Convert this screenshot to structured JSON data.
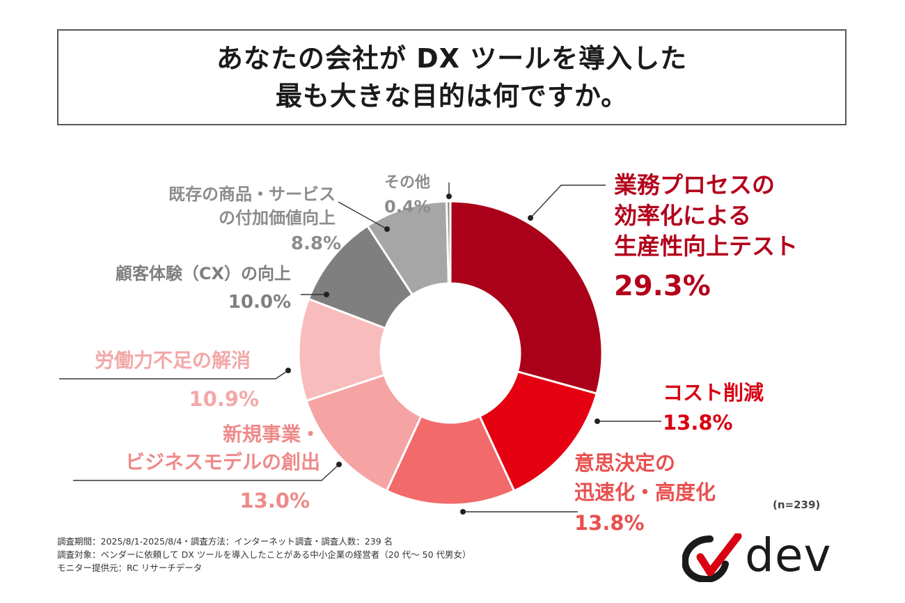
{
  "title": {
    "line1": "あなたの会社が DX ツールを導入した",
    "line2": "最も大きな目的は何ですか。"
  },
  "chart_data": {
    "type": "pie",
    "donut": true,
    "slices": [
      {
        "label_lines": [
          "業務プロセスの",
          "効率化による",
          "生産性向上テスト"
        ],
        "value": 29.3,
        "value_text": "29.3%",
        "color": "#aa0019",
        "label_color": "#b3001b"
      },
      {
        "label_lines": [
          "コスト削減"
        ],
        "value": 13.8,
        "value_text": "13.8%",
        "color": "#e50012",
        "label_color": "#d80012"
      },
      {
        "label_lines": [
          "意思決定の",
          "迅速化・高度化"
        ],
        "value": 13.8,
        "value_text": "13.8%",
        "color": "#f26a6a",
        "label_color": "#e8504f"
      },
      {
        "label_lines": [
          "新規事業・",
          "ビジネスモデルの創出"
        ],
        "value": 13.0,
        "value_text": "13.0%",
        "color": "#f5a3a3",
        "label_color": "#ee8a8a"
      },
      {
        "label_lines": [
          "労働力不足の解消"
        ],
        "value": 10.9,
        "value_text": "10.9%",
        "color": "#f8bcbc",
        "label_color": "#f3a8a8"
      },
      {
        "label_lines": [
          "顧客体験（CX）の向上"
        ],
        "value": 10.0,
        "value_text": "10.0%",
        "color": "#7f7f7f",
        "label_color": "#7f7f7f"
      },
      {
        "label_lines": [
          "既存の商品・サービス",
          "の付加価値向上"
        ],
        "value": 8.8,
        "value_text": "8.8%",
        "color": "#a6a6a6",
        "label_color": "#8c8c8c"
      },
      {
        "label_lines": [
          "その他"
        ],
        "value": 0.4,
        "value_text": "0.4%",
        "color": "#8c8c8c",
        "label_color": "#8c8c8c"
      }
    ],
    "sample_note": "(n=239)"
  },
  "meta": [
    "調査期間：2025/8/1-2025/8/4・調査方法：インターネット調査・調査人数：239 名",
    "調査対象：ベンダーに依頼して DX ツールを導入したことがある中小企業の経営者（20 代～ 50 代男女）",
    "モニター提供元：RC リサーチデータ"
  ],
  "logo": {
    "text": "dev",
    "colors": [
      "#1a1a1a",
      "#d80012"
    ]
  }
}
